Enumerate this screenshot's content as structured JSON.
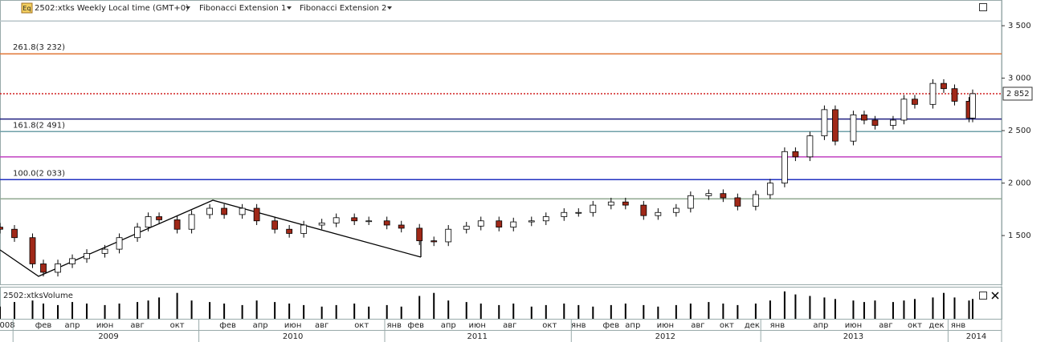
{
  "chart_data": {
    "type": "candlestick",
    "title": "2502:xtks Weekly Local time (GMT+0)",
    "studies": [
      "Fibonacci Extension 1",
      "Fibonacci Extension 2"
    ],
    "volume_title": "2502:xtksVolume",
    "icon": "Eq",
    "xlim": [
      0,
      277
    ],
    "ylim": [
      1035,
      3745
    ],
    "x": [
      0,
      4,
      9,
      12,
      16,
      20,
      24,
      29,
      33,
      38,
      41,
      44,
      49,
      53,
      58,
      62,
      67,
      71,
      76,
      80,
      84,
      89,
      93,
      98,
      102,
      107,
      111,
      116,
      120,
      124,
      129,
      133,
      138,
      142,
      147,
      151,
      156,
      160,
      164,
      169,
      173,
      178,
      182,
      187,
      191,
      196,
      200,
      204,
      209,
      213,
      217,
      220,
      224,
      228,
      231,
      236,
      239,
      242,
      247,
      250,
      253,
      258,
      261,
      264,
      268,
      269
    ],
    "open": [
      1580,
      1560,
      1480,
      1230,
      1150,
      1230,
      1280,
      1330,
      1370,
      1480,
      1580,
      1680,
      1650,
      1560,
      1700,
      1760,
      1700,
      1760,
      1640,
      1560,
      1520,
      1600,
      1620,
      1670,
      1640,
      1640,
      1600,
      1570,
      1450,
      1440,
      1560,
      1590,
      1640,
      1580,
      1630,
      1640,
      1680,
      1720,
      1720,
      1790,
      1820,
      1790,
      1690,
      1720,
      1760,
      1880,
      1900,
      1860,
      1780,
      1890,
      2000,
      2300,
      2250,
      2450,
      2700,
      2400,
      2650,
      2600,
      2550,
      2600,
      2800,
      2750,
      2950,
      2900,
      2780,
      2620
    ],
    "high": [
      1620,
      1600,
      1520,
      1270,
      1270,
      1320,
      1370,
      1410,
      1520,
      1620,
      1720,
      1720,
      1690,
      1740,
      1800,
      1800,
      1800,
      1800,
      1680,
      1600,
      1640,
      1660,
      1710,
      1710,
      1680,
      1680,
      1640,
      1610,
      1490,
      1600,
      1630,
      1680,
      1680,
      1670,
      1680,
      1720,
      1760,
      1760,
      1830,
      1860,
      1860,
      1830,
      1760,
      1800,
      1920,
      1940,
      1940,
      1900,
      1930,
      2040,
      2340,
      2340,
      2490,
      2740,
      2740,
      2690,
      2690,
      2640,
      2640,
      2840,
      2840,
      2990,
      2990,
      2940,
      2820,
      2892
    ],
    "low": [
      1520,
      1440,
      1190,
      1110,
      1110,
      1190,
      1240,
      1290,
      1330,
      1440,
      1540,
      1610,
      1520,
      1520,
      1660,
      1660,
      1660,
      1600,
      1520,
      1480,
      1480,
      1560,
      1580,
      1600,
      1600,
      1560,
      1530,
      1410,
      1400,
      1400,
      1520,
      1550,
      1540,
      1540,
      1590,
      1600,
      1640,
      1680,
      1680,
      1750,
      1750,
      1650,
      1650,
      1680,
      1720,
      1840,
      1820,
      1740,
      1740,
      1850,
      1960,
      2210,
      2210,
      2410,
      2360,
      2360,
      2560,
      2510,
      2510,
      2560,
      2710,
      2710,
      2860,
      2740,
      2580,
      2580
    ],
    "close": [
      1560,
      1480,
      1230,
      1150,
      1230,
      1280,
      1330,
      1370,
      1480,
      1580,
      1680,
      1650,
      1560,
      1700,
      1760,
      1700,
      1760,
      1640,
      1560,
      1520,
      1600,
      1620,
      1670,
      1640,
      1640,
      1600,
      1570,
      1450,
      1440,
      1560,
      1590,
      1640,
      1580,
      1630,
      1640,
      1680,
      1720,
      1720,
      1790,
      1820,
      1790,
      1690,
      1720,
      1760,
      1880,
      1900,
      1860,
      1780,
      1890,
      2000,
      2300,
      2250,
      2450,
      2700,
      2400,
      2650,
      2600,
      2550,
      2600,
      2800,
      2750,
      2950,
      2900,
      2780,
      2620,
      2852
    ],
    "volume": [
      40,
      55,
      60,
      50,
      45,
      55,
      50,
      45,
      50,
      55,
      60,
      70,
      85,
      60,
      55,
      50,
      45,
      60,
      55,
      50,
      45,
      40,
      45,
      50,
      40,
      45,
      40,
      75,
      85,
      60,
      55,
      50,
      45,
      50,
      40,
      45,
      50,
      45,
      40,
      45,
      50,
      45,
      40,
      45,
      50,
      55,
      50,
      45,
      50,
      60,
      90,
      80,
      75,
      70,
      65,
      60,
      55,
      60,
      55,
      60,
      65,
      70,
      85,
      70,
      60,
      65
    ],
    "volume_lim": [
      0,
      100
    ],
    "up_color": "#ffffff",
    "down_color": "#a02818",
    "yticks": [
      {
        "value": 1500,
        "label": "1 500"
      },
      {
        "value": 2000,
        "label": "2 000"
      },
      {
        "value": 2500,
        "label": "2 500"
      },
      {
        "value": 3000,
        "label": "3 000"
      },
      {
        "value": 3500,
        "label": "3 500"
      }
    ],
    "levels": [
      {
        "value": 3545,
        "color": "#b8c4c8"
      },
      {
        "value": 3232,
        "color": "#e07838",
        "label": "261.8(3 232)"
      },
      {
        "value": 2610,
        "color": "#202080"
      },
      {
        "value": 2491,
        "color": "#70a0a8",
        "label": "161.8(2 491)"
      },
      {
        "value": 2250,
        "color": "#c040c0"
      },
      {
        "value": 2033,
        "color": "#2030c0",
        "label": "100.0(2 033)"
      },
      {
        "value": 1850,
        "color": "#90a890"
      }
    ],
    "last_price": {
      "value": 2852,
      "label": "2 852",
      "color": "#d02020"
    },
    "month_ticks": [
      {
        "value": 2,
        "label": "008"
      },
      {
        "value": 12,
        "label": "фев"
      },
      {
        "value": 20,
        "label": "апр"
      },
      {
        "value": 29,
        "label": "июн"
      },
      {
        "value": 38,
        "label": "авг"
      },
      {
        "value": 49,
        "label": "окт"
      },
      {
        "value": 63,
        "label": "фев"
      },
      {
        "value": 72,
        "label": "апр"
      },
      {
        "value": 81,
        "label": "июн"
      },
      {
        "value": 89,
        "label": "авг"
      },
      {
        "value": 100,
        "label": "окт"
      },
      {
        "value": 109,
        "label": "янв"
      },
      {
        "value": 115,
        "label": "фев"
      },
      {
        "value": 124,
        "label": "апр"
      },
      {
        "value": 132,
        "label": "июн"
      },
      {
        "value": 141,
        "label": "авг"
      },
      {
        "value": 152,
        "label": "окт"
      },
      {
        "value": 160,
        "label": "янв"
      },
      {
        "value": 169,
        "label": "фев"
      },
      {
        "value": 175,
        "label": "апр"
      },
      {
        "value": 184,
        "label": "июн"
      },
      {
        "value": 193,
        "label": "авг"
      },
      {
        "value": 201,
        "label": "окт"
      },
      {
        "value": 208,
        "label": "дек"
      },
      {
        "value": 215,
        "label": "янв"
      },
      {
        "value": 227,
        "label": "апр"
      },
      {
        "value": 236,
        "label": "июн"
      },
      {
        "value": 245,
        "label": "авг"
      },
      {
        "value": 253,
        "label": "окт"
      },
      {
        "value": 259,
        "label": "дек"
      },
      {
        "value": 265,
        "label": "янв"
      }
    ],
    "year_ticks": [
      {
        "value": 30,
        "label": "2009"
      },
      {
        "value": 81,
        "label": "2010"
      },
      {
        "value": 132,
        "label": "2011"
      },
      {
        "value": 184,
        "label": "2012"
      },
      {
        "value": 236,
        "label": "2013"
      },
      {
        "value": 270,
        "label": "2014"
      }
    ],
    "year_boundaries": [
      3.6,
      55,
      106.4,
      158,
      210.4,
      262.2
    ]
  }
}
